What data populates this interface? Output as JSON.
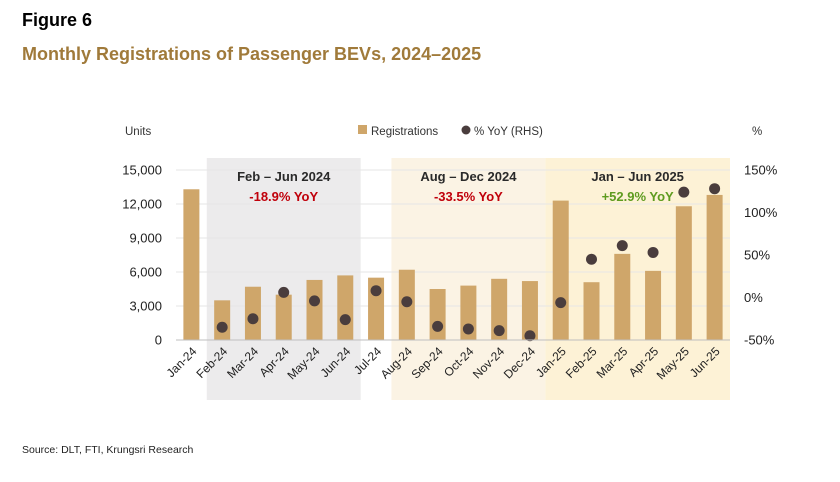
{
  "figure_label": "Figure 6",
  "title": "Monthly Registrations of Passenger BEVs, 2024–2025",
  "source": "Source: DLT, FTI,  Krungsri Research",
  "colors": {
    "bar": "#cfa66a",
    "dot": "#4a3d3d",
    "shade_feb_jun_2024": "#ecebec",
    "shade_aug_dec_2024": "#fbf3e4",
    "shade_jan_jun_2025": "#fdf2d6",
    "title": "#a07a3a",
    "negative": "#c0000b",
    "positive": "#5e9b1f",
    "grid": "#e6e6e6"
  },
  "chart_data": {
    "type": "bar",
    "categories": [
      "Jan-24",
      "Feb-24",
      "Mar-24",
      "Apr-24",
      "May-24",
      "Jun-24",
      "Jul-24",
      "Aug-24",
      "Sep-24",
      "Oct-24",
      "Nov-24",
      "Dec-24",
      "Jan-25",
      "Feb-25",
      "Mar-25",
      "Apr-25",
      "May-25",
      "Jun-25"
    ],
    "series": [
      {
        "name": "Registrations",
        "axis": "left",
        "type": "bar",
        "values": [
          13300,
          3500,
          4700,
          4000,
          5300,
          5700,
          5500,
          6200,
          4500,
          4800,
          5400,
          5200,
          12300,
          5100,
          7600,
          6100,
          11800,
          12800
        ]
      },
      {
        "name": "% YoY (RHS)",
        "axis": "right",
        "type": "scatter",
        "values": [
          null,
          -35,
          -25,
          6,
          -4,
          -26,
          8,
          -5,
          -34,
          -37,
          -39,
          -45,
          -6,
          45,
          61,
          53,
          124,
          128
        ]
      }
    ],
    "ylabel": "Units",
    "ylabel_right": "%",
    "ylim": [
      0,
      15000
    ],
    "yticks": [
      "0",
      "3,000",
      "6,000",
      "9,000",
      "12,000",
      "15,000"
    ],
    "ylim_right": [
      -50,
      150
    ],
    "yticks_right": [
      "-50%",
      "0%",
      "50%",
      "100%",
      "150%"
    ],
    "legend_position": "top-center",
    "annotations": [
      {
        "period": "Feb – Jun 2024",
        "yoy": "-18.9% YoY",
        "start": 1,
        "end": 5,
        "tone": "negative"
      },
      {
        "period": "Aug – Dec 2024",
        "yoy": "-33.5% YoY",
        "start": 7,
        "end": 11,
        "tone": "negative"
      },
      {
        "period": "Jan – Jun 2025",
        "yoy": "+52.9% YoY",
        "start": 12,
        "end": 17,
        "tone": "positive"
      }
    ]
  }
}
